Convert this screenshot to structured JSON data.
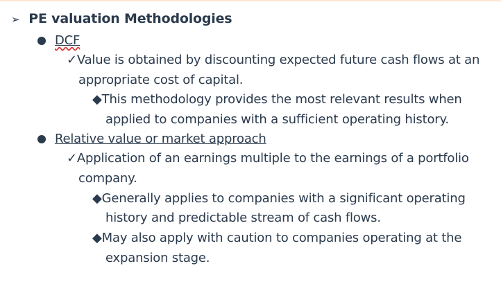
{
  "title": "PE valuation Methodologies",
  "sections": [
    {
      "label": "DCF",
      "points": [
        {
          "text": [
            "Value is obtained by discounting expected future cash flows at an",
            "appropriate cost of capital."
          ],
          "subpoints": [
            [
              "This methodology provides the most relevant results when",
              "applied to companies with a sufficient operating history."
            ]
          ]
        }
      ]
    },
    {
      "label": "Relative value or market approach",
      "points": [
        {
          "text": [
            "Application of an earnings multiple to the earnings of a portfolio",
            "company."
          ],
          "subpoints": [
            [
              "Generally applies to companies with a significant operating",
              "history and predictable stream of cash flows."
            ],
            [
              "May also apply with caution to companies operating at the",
              "expansion stage."
            ]
          ]
        }
      ]
    }
  ],
  "icons": {
    "title": "arrowhead-bullet",
    "level1": "filled-circle-bullet",
    "level2": "checkmark-bullet",
    "level3": "diamond-bullet"
  }
}
